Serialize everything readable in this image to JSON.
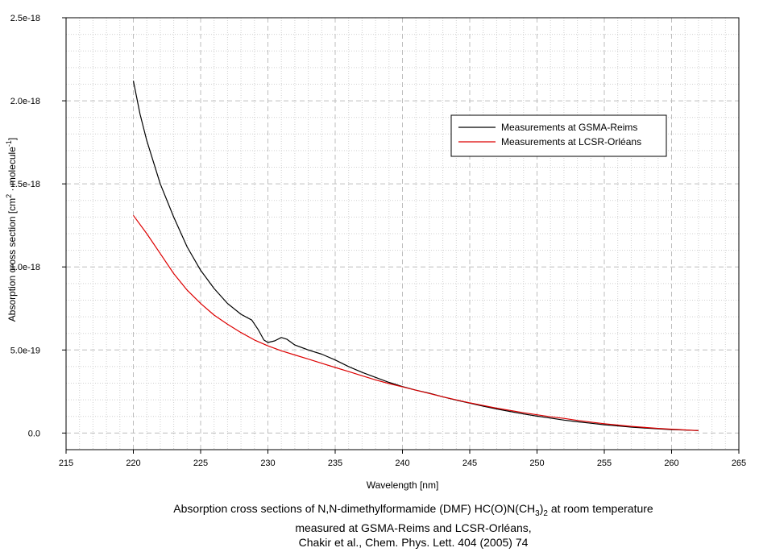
{
  "chart_data": {
    "type": "line",
    "xlabel": "Wavelength [nm]",
    "ylabel_main": "Absorption cross section [cm",
    "ylabel_sup1": "2",
    "ylabel_mid": " · molecule",
    "ylabel_sup2": "-1",
    "ylabel_end": "]",
    "xlim": [
      215,
      265
    ],
    "ylim": [
      -1e-19,
      2.5e-18
    ],
    "x_ticks": [
      215,
      220,
      225,
      230,
      235,
      240,
      245,
      250,
      255,
      260,
      265
    ],
    "x_tick_labels": [
      "215",
      "220",
      "225",
      "230",
      "235",
      "240",
      "245",
      "250",
      "255",
      "260",
      "265"
    ],
    "y_ticks": [
      0,
      5e-19,
      1e-18,
      1.5e-18,
      2e-18,
      2.5e-18
    ],
    "y_tick_labels": [
      "0.0",
      "5.0e-19",
      "1.0e-18",
      "1.5e-18",
      "2.0e-18",
      "2.5e-18"
    ],
    "grid": true,
    "legend_position": "top-right",
    "series": [
      {
        "name": "Measurements at GSMA-Reims",
        "color": "#000000",
        "x": [
          220,
          220.5,
          221,
          222,
          223,
          224,
          225,
          226,
          227,
          228,
          228.8,
          229.3,
          229.7,
          230,
          230.5,
          231,
          231.4,
          232,
          233,
          234,
          235,
          236,
          237,
          238,
          239,
          240,
          241,
          242,
          243,
          244,
          245,
          246,
          247,
          248,
          249,
          250,
          251,
          252,
          253,
          254,
          255,
          256,
          257,
          258,
          259,
          260,
          261,
          262
        ],
        "y": [
          2.12e-18,
          1.92e-18,
          1.76e-18,
          1.5e-18,
          1.3e-18,
          1.12e-18,
          9.8e-19,
          8.7e-19,
          7.8e-19,
          7.15e-19,
          6.8e-19,
          6.2e-19,
          5.6e-19,
          5.45e-19,
          5.55e-19,
          5.75e-19,
          5.65e-19,
          5.3e-19,
          5e-19,
          4.75e-19,
          4.4e-19,
          4e-19,
          3.65e-19,
          3.35e-19,
          3.05e-19,
          2.8e-19,
          2.58e-19,
          2.4e-19,
          2.18e-19,
          1.98e-19,
          1.8e-19,
          1.62e-19,
          1.45e-19,
          1.3e-19,
          1.15e-19,
          1.02e-19,
          9e-20,
          7.8e-20,
          6.8e-20,
          5.9e-20,
          5e-20,
          4.3e-20,
          3.6e-20,
          3e-20,
          2.5e-20,
          2.1e-20,
          1.8e-20,
          1.5e-20
        ]
      },
      {
        "name": "Measurements at LCSR-Orléans",
        "color": "#dd0000",
        "x": [
          220,
          221,
          222,
          223,
          224,
          225,
          226,
          227,
          228,
          229,
          230,
          231,
          232,
          233,
          234,
          235,
          236,
          237,
          238,
          239,
          240,
          241,
          242,
          243,
          244,
          245,
          246,
          247,
          248,
          249,
          250,
          251,
          252,
          253,
          254,
          255,
          256,
          257,
          258,
          259,
          260,
          261,
          262
        ],
        "y": [
          1.31e-18,
          1.2e-18,
          1.08e-18,
          9.6e-19,
          8.6e-19,
          7.8e-19,
          7.1e-19,
          6.55e-19,
          6.05e-19,
          5.6e-19,
          5.25e-19,
          4.95e-19,
          4.7e-19,
          4.45e-19,
          4.2e-19,
          3.95e-19,
          3.7e-19,
          3.45e-19,
          3.2e-19,
          2.98e-19,
          2.78e-19,
          2.58e-19,
          2.38e-19,
          2.18e-19,
          2e-19,
          1.82e-19,
          1.66e-19,
          1.5e-19,
          1.36e-19,
          1.22e-19,
          1.1e-19,
          9.8e-20,
          8.8e-20,
          7.6e-20,
          6.6e-20,
          5.6e-20,
          4.8e-20,
          4e-20,
          3.4e-20,
          2.8e-20,
          2.3e-20,
          1.9e-20,
          1.5e-20
        ]
      }
    ]
  },
  "caption": {
    "line1_a": "Absorption cross sections of N,N-dimethylformamide (DMF) HC(O)N(CH",
    "line1_sub1": "3",
    "line1_b": ")",
    "line1_sub2": "2",
    "line1_c": " at room temperature",
    "line2": "measured at GSMA-Reims and LCSR-Orléans,",
    "line3": "Chakir et al., Chem. Phys. Lett. 404 (2005) 74"
  }
}
